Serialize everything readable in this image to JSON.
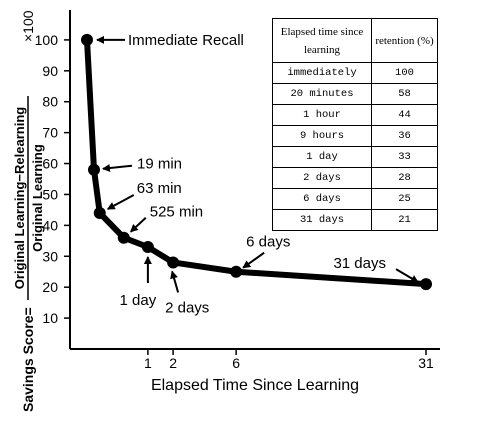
{
  "chart_data": {
    "type": "line",
    "x_scale": "sqrt",
    "color": "#000000",
    "x": [
      0,
      0.0132,
      0.0438,
      0.3646,
      1,
      2,
      6,
      31
    ],
    "values": [
      100,
      58,
      44,
      36,
      33,
      28,
      25,
      21
    ],
    "point_labels": [
      "Immediate Recall",
      "19 min",
      "63 min",
      "525 min",
      "1 day",
      "2 days",
      "6 days",
      "31 days"
    ],
    "xlim": [
      0,
      31
    ],
    "xticks": [
      1,
      2,
      6,
      31
    ],
    "ylim": [
      0,
      110
    ],
    "yticks": [
      10,
      20,
      30,
      40,
      50,
      60,
      70,
      80,
      90,
      100
    ],
    "xlabel": "Elapsed Time Since Learning",
    "ylabel": {
      "prefix": "Savings Score=",
      "numerator": "Original Learning−Relearning",
      "denominator": "Original Learning",
      "suffix": "×100"
    },
    "table": {
      "columns": [
        "Elapsed time since learning",
        "retention (%)"
      ],
      "rows": [
        "immediately",
        "20 minutes",
        "1 hour",
        "9 hours",
        "1 day",
        "2 days",
        "6 days",
        "31 days"
      ]
    }
  }
}
